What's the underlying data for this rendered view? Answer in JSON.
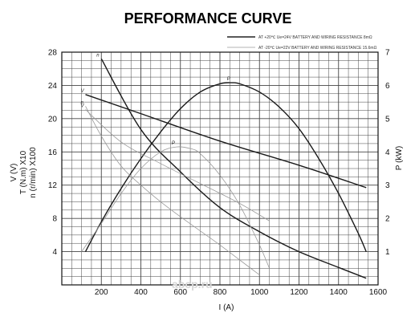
{
  "chart_data": {
    "type": "line",
    "title": "PERFORMANCE CURVE",
    "xlabel": "I (A)",
    "ylabel_left": [
      "V (V)",
      "T (N.m) X10",
      "n (r/min) X100"
    ],
    "ylabel_right": "P (kW)",
    "xlim": [
      0,
      1600
    ],
    "ylim_left": [
      0,
      28
    ],
    "ylim_right": [
      0,
      7
    ],
    "x_ticks": [
      "200",
      "400",
      "600",
      "800",
      "1000",
      "1200",
      "1400",
      "1600"
    ],
    "y_left_ticks": [
      "4",
      "8",
      "12",
      "16",
      "20",
      "24",
      "28"
    ],
    "y_right_ticks": [
      "1",
      "2",
      "3",
      "4",
      "5",
      "6",
      "7"
    ],
    "grid": true,
    "legend_position": "top-right",
    "legend": [
      {
        "text": "AT +20℃  Ue=24V  BATTERY AND WIRING RESISTANCE 8mΩ",
        "style": "solid",
        "color": "#222222"
      },
      {
        "text": "AT -20℃  Ue=22V  BATTERY AND WIRING RESISTANCE 15.6mΩ",
        "style": "light",
        "color": "#9a9a9a"
      }
    ],
    "series": [
      {
        "name": "n",
        "label": "n",
        "axis": "left",
        "style": "solid",
        "x": [
          200,
          400,
          600,
          800,
          1000,
          1200,
          1400,
          1540
        ],
        "y": [
          27.2,
          18.7,
          13.6,
          9.3,
          6.4,
          4.0,
          2.1,
          0.8
        ]
      },
      {
        "name": "V",
        "label": "V",
        "axis": "left",
        "style": "solid",
        "x": [
          120,
          400,
          800,
          1200,
          1540
        ],
        "y": [
          22.9,
          20.6,
          17.3,
          14.4,
          11.7
        ]
      },
      {
        "name": "P",
        "label": "P",
        "axis": "right",
        "style": "solid",
        "x": [
          120,
          200,
          300,
          400,
          500,
          600,
          700,
          800,
          860,
          900,
          1000,
          1100,
          1200,
          1300,
          1400,
          1500,
          1540
        ],
        "y": [
          1.0,
          1.9,
          2.9,
          3.8,
          4.6,
          5.3,
          5.8,
          6.05,
          6.08,
          6.05,
          5.8,
          5.35,
          4.7,
          3.8,
          2.75,
          1.55,
          1.0
        ]
      },
      {
        "name": "n",
        "label": "n",
        "axis": "left",
        "style": "light",
        "x": [
          120,
          200,
          300,
          400,
          500,
          600,
          700,
          800,
          900,
          1000
        ],
        "y": [
          21.5,
          17.9,
          14.3,
          12.0,
          10.0,
          8.2,
          6.5,
          4.8,
          3.0,
          1.2
        ]
      },
      {
        "name": "V",
        "label": "V",
        "axis": "left",
        "style": "light",
        "x": [
          120,
          300,
          500,
          700,
          900,
          1050
        ],
        "y": [
          21.1,
          17.2,
          14.6,
          12.2,
          9.8,
          7.7
        ]
      },
      {
        "name": "P",
        "label": "P",
        "axis": "right",
        "style": "light",
        "x": [
          100,
          200,
          300,
          400,
          500,
          580,
          650,
          700,
          800,
          900,
          1000,
          1050
        ],
        "y": [
          1.0,
          1.85,
          2.75,
          3.5,
          4.0,
          4.15,
          4.1,
          3.95,
          3.3,
          2.4,
          1.2,
          0.5
        ]
      }
    ]
  },
  "watermark": "abcp.ru"
}
